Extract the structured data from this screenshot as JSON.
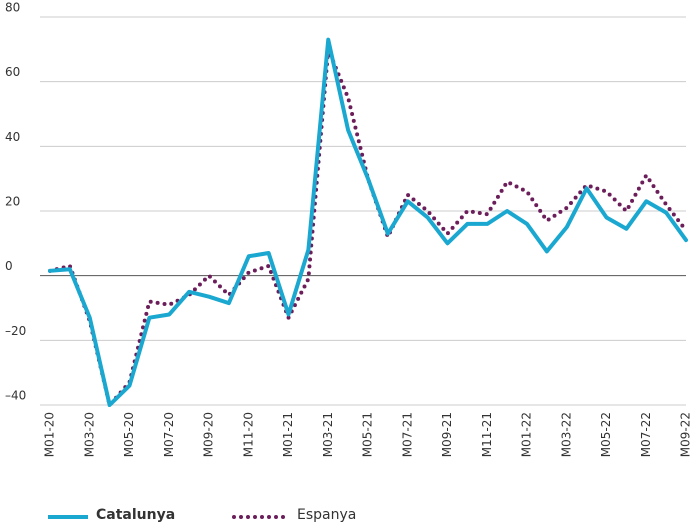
{
  "chart_data": {
    "type": "line",
    "categories": [
      "M01-20",
      null,
      "M03-20",
      null,
      "M05-20",
      null,
      "M07-20",
      null,
      "M09-20",
      null,
      "M11-20",
      null,
      "M01-21",
      null,
      "M03-21",
      null,
      "M05-21",
      null,
      "M07-21",
      null,
      "M09-21",
      null,
      "M11-21",
      null,
      "M01-22",
      null,
      "M03-22",
      null,
      "M05-22",
      null,
      "M07-22",
      null,
      "M09-22"
    ],
    "series": [
      {
        "name": "Catalunya",
        "color": "#1aa8d0",
        "values": [
          1.5,
          2,
          -13,
          -40,
          -34,
          -13,
          -12,
          -5,
          -6.5,
          -8.5,
          6,
          7,
          -12,
          8,
          73,
          45,
          30,
          13,
          23,
          18,
          10,
          16,
          16,
          20,
          16,
          7.5,
          15,
          27,
          18,
          14.5,
          23,
          19.5,
          11
        ]
      },
      {
        "name": "Espanya",
        "color": "#6b1e5a",
        "values": [
          1.5,
          3,
          -14,
          -40,
          -33,
          -8,
          -9,
          -6,
          0,
          -6,
          1,
          3,
          -13,
          -1,
          70,
          55,
          30,
          12,
          25,
          20,
          13,
          20,
          19,
          29,
          26,
          17,
          21,
          28,
          26,
          20,
          31,
          22,
          14
        ]
      }
    ],
    "ylim": [
      -40,
      80
    ],
    "yticks": [
      {
        "value": -40,
        "label": "–40"
      },
      {
        "value": -20,
        "label": "–20"
      },
      0,
      20,
      40,
      60,
      80
    ],
    "grid": true
  }
}
